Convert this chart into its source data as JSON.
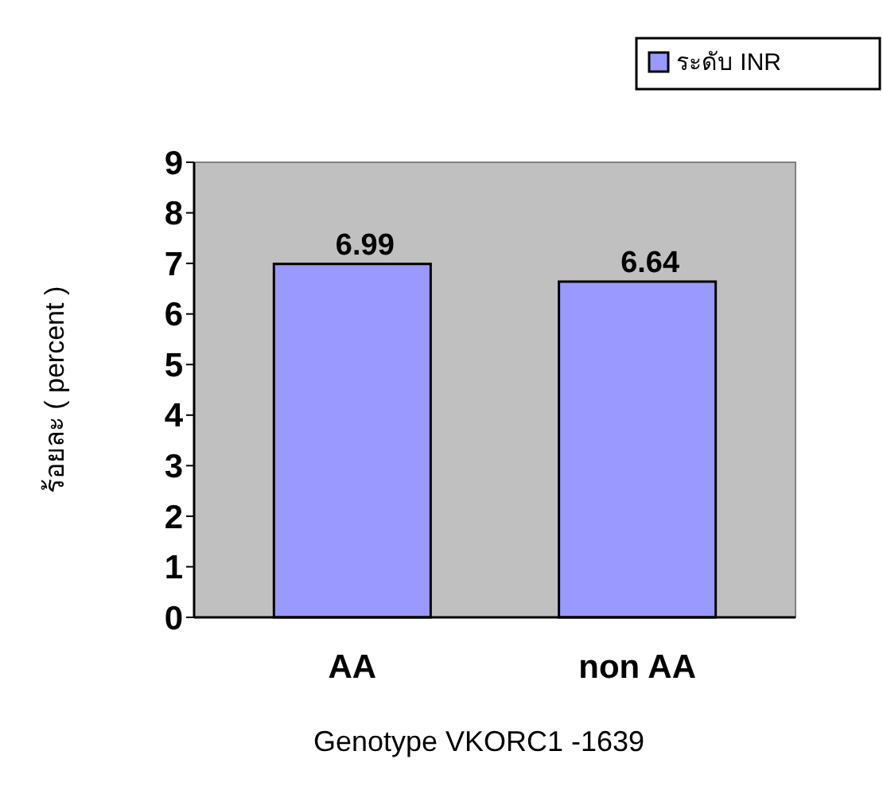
{
  "chart_data": {
    "type": "bar",
    "xlabel": "Genotype VKORC1 -1639",
    "ylabel": "ร้อยละ ( percent )",
    "categories": [
      "AA",
      "non AA"
    ],
    "series": [
      {
        "name": "ระดับ INR",
        "color": "#9999ff",
        "values": [
          6.99,
          6.64
        ]
      }
    ],
    "ylim": [
      0,
      9
    ],
    "yticks": [
      0,
      1,
      2,
      3,
      4,
      5,
      6,
      7,
      8,
      9
    ],
    "data_labels": true,
    "legend": "top right",
    "grid": false
  }
}
